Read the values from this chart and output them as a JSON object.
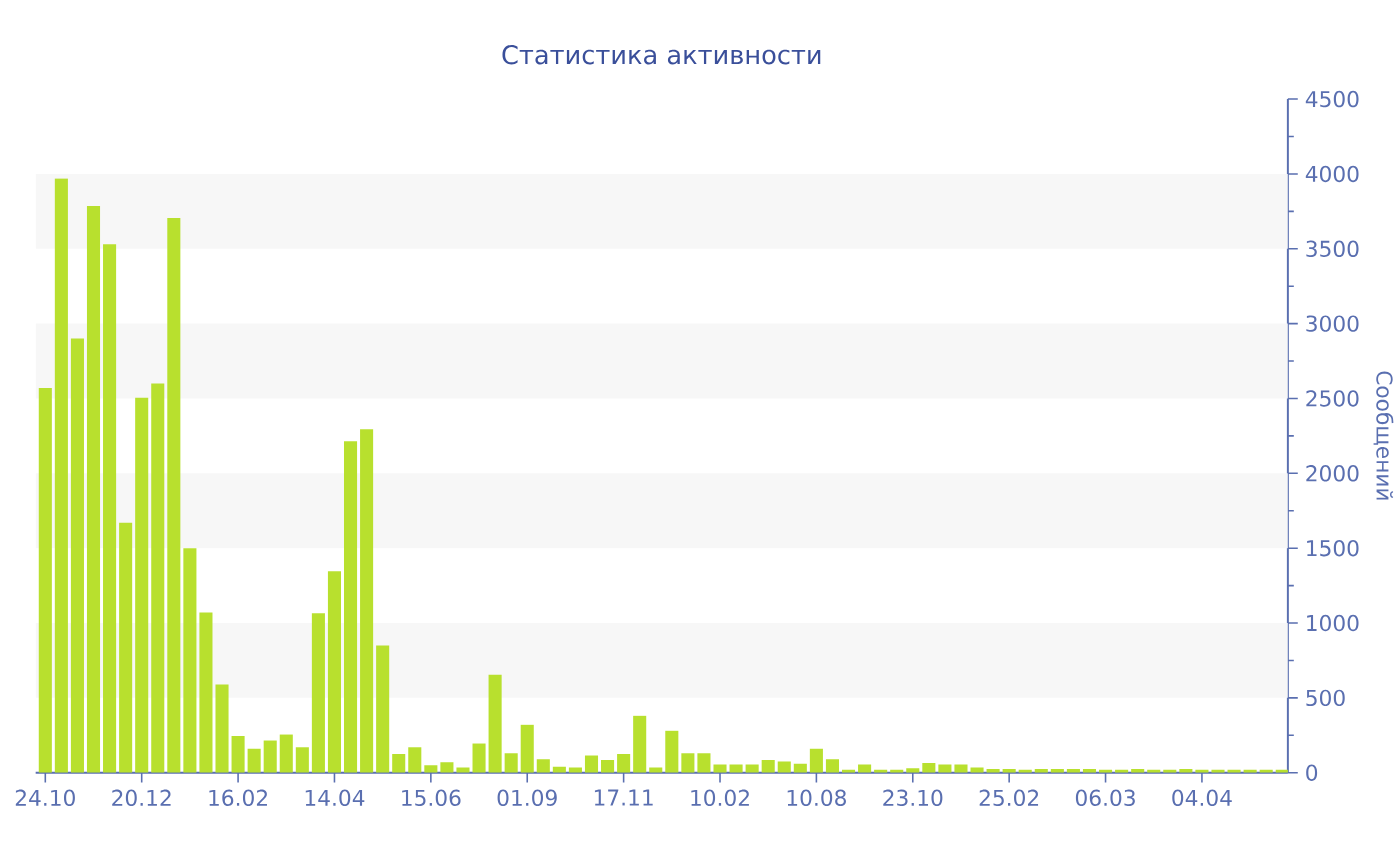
{
  "chart_data": {
    "type": "bar",
    "title": "Статистика активности",
    "ylabel": "Сообщений",
    "categories": [
      "24.10",
      null,
      null,
      null,
      null,
      null,
      "20.12",
      null,
      null,
      null,
      null,
      null,
      "16.02",
      null,
      null,
      null,
      null,
      null,
      "14.04",
      null,
      null,
      null,
      null,
      null,
      "15.06",
      null,
      null,
      null,
      null,
      null,
      "01.09",
      null,
      null,
      null,
      null,
      null,
      "17.11",
      null,
      null,
      null,
      null,
      null,
      "10.02",
      null,
      null,
      null,
      null,
      null,
      "10.08",
      null,
      null,
      null,
      null,
      null,
      "23.10",
      null,
      null,
      null,
      null,
      null,
      "25.02",
      null,
      null,
      null,
      null,
      null,
      "06.03",
      null,
      null,
      null,
      null,
      null,
      "04.04",
      null,
      null,
      null,
      null,
      null
    ],
    "values": [
      2570,
      3970,
      2900,
      3785,
      3530,
      1670,
      2505,
      2600,
      3705,
      1500,
      1070,
      590,
      245,
      160,
      215,
      255,
      170,
      1065,
      1345,
      2215,
      2295,
      850,
      125,
      170,
      50,
      70,
      35,
      195,
      655,
      130,
      320,
      90,
      40,
      35,
      115,
      85,
      125,
      380,
      35,
      280,
      130,
      130,
      55,
      55,
      55,
      85,
      75,
      60,
      160,
      90,
      20,
      55,
      20,
      20,
      30,
      65,
      55,
      55,
      35,
      25,
      25,
      20,
      25,
      25,
      25,
      25,
      20,
      20,
      25,
      20,
      20,
      25,
      20,
      20,
      20,
      20,
      20,
      20
    ],
    "color": "#b8e02e",
    "ylim": [
      0,
      4500
    ],
    "yticks": [
      0,
      500,
      1000,
      1500,
      2000,
      2500,
      3000,
      3500,
      4000,
      4500
    ],
    "bands": [
      {
        "axis": "y",
        "from": 500,
        "to": 1000,
        "color": "#f7f7f7"
      },
      {
        "axis": "y",
        "from": 1500,
        "to": 2000,
        "color": "#f7f7f7"
      },
      {
        "axis": "y",
        "from": 2500,
        "to": 3000,
        "color": "#f7f7f7"
      },
      {
        "axis": "y",
        "from": 3500,
        "to": 4000,
        "color": "#f7f7f7"
      }
    ],
    "grid": false
  }
}
